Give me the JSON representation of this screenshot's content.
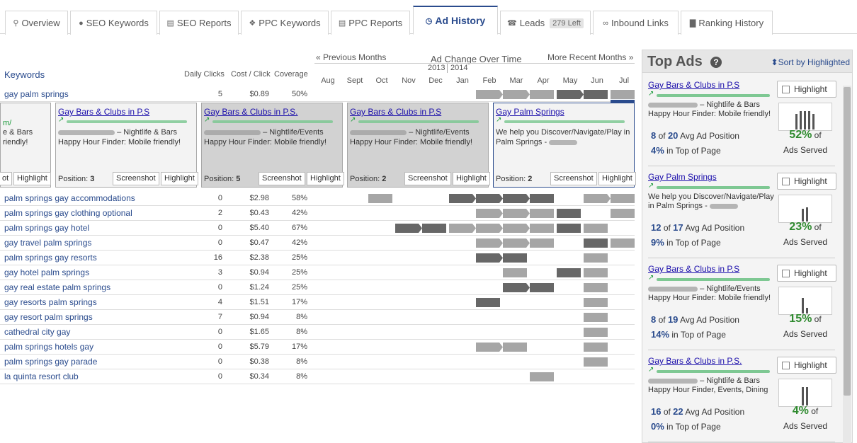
{
  "tabs": [
    {
      "icon": "search-icon",
      "glyph": "⚲",
      "label": "Overview"
    },
    {
      "icon": "globe-icon",
      "glyph": "●",
      "label": "SEO Keywords"
    },
    {
      "icon": "document-icon",
      "glyph": "▤",
      "label": "SEO Reports"
    },
    {
      "icon": "puzzle-icon",
      "glyph": "❖",
      "label": "PPC Keywords"
    },
    {
      "icon": "document-icon",
      "glyph": "▤",
      "label": "PPC Reports"
    },
    {
      "icon": "clock-icon",
      "glyph": "◷",
      "label": "Ad History"
    },
    {
      "icon": "phone-icon",
      "glyph": "☎",
      "label": "Leads",
      "badge": "279 Left"
    },
    {
      "icon": "link-icon",
      "glyph": "∞",
      "label": "Inbound Links"
    },
    {
      "icon": "bar-chart-icon",
      "glyph": "▇",
      "label": "Ranking History"
    }
  ],
  "timeline": {
    "prev_link": "« Previous Months",
    "title": "Ad Change Over Time",
    "next_link": "More Recent Months »",
    "year_left": "2013",
    "year_right": "2014",
    "months": [
      "Aug",
      "Sept",
      "Oct",
      "Nov",
      "Dec",
      "Jan",
      "Feb",
      "Mar",
      "Apr",
      "May",
      "Jun",
      "Jul"
    ]
  },
  "table": {
    "kw_header": "Keywords",
    "clicks_header": "Daily Clicks",
    "cpc_header": "Cost / Click",
    "coverage_header": "Coverage",
    "first_row": {
      "kw": "gay palm springs",
      "clicks": "5",
      "cpc": "$0.89",
      "coverage": "50%"
    },
    "rows": [
      {
        "kw": "palm springs gay accommodations",
        "clicks": "0",
        "cpc": "$2.98",
        "coverage": "58%"
      },
      {
        "kw": "palm springs gay clothing optional",
        "clicks": "2",
        "cpc": "$0.43",
        "coverage": "42%"
      },
      {
        "kw": "palm springs gay hotel",
        "clicks": "0",
        "cpc": "$5.40",
        "coverage": "67%"
      },
      {
        "kw": "gay travel palm springs",
        "clicks": "0",
        "cpc": "$0.47",
        "coverage": "42%"
      },
      {
        "kw": "palm springs gay resorts",
        "clicks": "16",
        "cpc": "$2.38",
        "coverage": "25%"
      },
      {
        "kw": "gay hotel palm springs",
        "clicks": "3",
        "cpc": "$0.94",
        "coverage": "25%"
      },
      {
        "kw": "gay real estate palm springs",
        "clicks": "0",
        "cpc": "$1.24",
        "coverage": "25%"
      },
      {
        "kw": "gay resorts palm springs",
        "clicks": "4",
        "cpc": "$1.51",
        "coverage": "17%"
      },
      {
        "kw": "gay resort palm springs",
        "clicks": "7",
        "cpc": "$0.94",
        "coverage": "8%"
      },
      {
        "kw": "cathedral city gay",
        "clicks": "0",
        "cpc": "$1.65",
        "coverage": "8%"
      },
      {
        "kw": "palm springs hotels gay",
        "clicks": "0",
        "cpc": "$5.79",
        "coverage": "17%"
      },
      {
        "kw": "palm springs gay parade",
        "clicks": "0",
        "cpc": "$0.38",
        "coverage": "8%"
      },
      {
        "kw": "la quinta resort club",
        "clicks": "0",
        "cpc": "$0.34",
        "coverage": "8%"
      }
    ]
  },
  "ad_cards": [
    {
      "title": "",
      "l1": "m/",
      "l2": "e & Bars",
      "l3": "riendly!",
      "position_label": "",
      "screenshot": "ot",
      "highlight": "Highlight"
    },
    {
      "title": "Gay Bars & Clubs in P.S",
      "l1_suffix": "– Nightlife & Bars",
      "l2": "Happy Hour Finder: Mobile friendly!",
      "position_label": "Position:",
      "position": "3",
      "screenshot": "Screenshot",
      "highlight": "Highlight"
    },
    {
      "title": "Gay Bars & Clubs in P.S.",
      "l1_suffix": "– Nightlife/Events",
      "l2": "Happy Hour Finder: Mobile friendly!",
      "position_label": "Position:",
      "position": "5",
      "screenshot": "Screenshot",
      "highlight": "Highlight"
    },
    {
      "title": "Gay Bars & Clubs in P.S",
      "l1_suffix": "– Nightlife/Events",
      "l2": "Happy Hour Finder: Mobile friendly!",
      "position_label": "Position:",
      "position": "2",
      "screenshot": "Screenshot",
      "highlight": "Highlight"
    },
    {
      "title": "Gay Palm Springs",
      "l1": "We help you Discover/Navigate/Play in",
      "l2": "Palm Springs - ",
      "position_label": "Position:",
      "position": "2",
      "screenshot": "Screenshot",
      "highlight": "Highlight"
    }
  ],
  "top_ads": {
    "title": "Top Ads",
    "help": "?",
    "sort_label": "⬍Sort by Highlighted",
    "highlight_label": "Highlight",
    "of_label": "of",
    "avg_label": "Avg Ad Position",
    "top_label": "in Top of Page",
    "served_label": "Ads Served",
    "ads": [
      {
        "title": "Gay Bars & Clubs in P.S",
        "l1_suffix": "– Nightlife & Bars",
        "l2": "Happy Hour Finder: Mobile friendly!",
        "avg_num": "8",
        "avg_of": "20",
        "top_pct": "4%",
        "served_pct": "52%",
        "spark": [
          22,
          26,
          26,
          26,
          22
        ]
      },
      {
        "title": "Gay Palm Springs",
        "l1": "We help you Discover/Navigate/Play",
        "l2_prefix": "in Palm Springs - ",
        "avg_num": "12",
        "avg_of": "17",
        "top_pct": "9%",
        "served_pct": "23%",
        "spark": [
          18,
          20
        ]
      },
      {
        "title": "Gay Bars & Clubs in P.S",
        "l1_suffix": "– Nightlife/Events",
        "l2": "Happy Hour Finder: Mobile friendly!",
        "avg_num": "8",
        "avg_of": "19",
        "top_pct": "14%",
        "served_pct": "15%",
        "spark": [
          22,
          8
        ]
      },
      {
        "title": "Gay Bars & Clubs in P.S.",
        "l1_suffix": "– Nightlife & Bars",
        "l2": "Happy Hour Finder, Events, Dining",
        "avg_num": "16",
        "avg_of": "22",
        "top_pct": "0%",
        "served_pct": "4%",
        "spark": [
          26,
          26
        ]
      }
    ]
  },
  "colors": {
    "accent": "#2a4b8d",
    "link": "#1a0dab",
    "success": "#2e8a2e",
    "bar_light": "#a6a6a6",
    "bar_dark": "#676767"
  }
}
